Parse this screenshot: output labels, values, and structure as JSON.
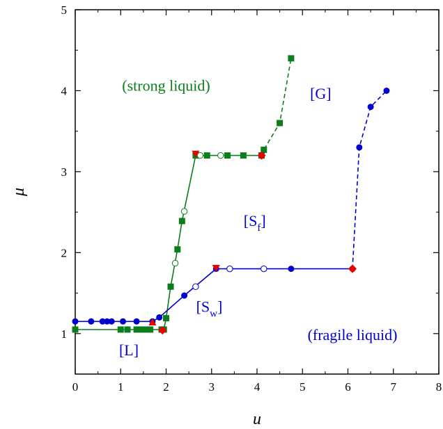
{
  "chart_data": {
    "type": "scatter",
    "title": "",
    "xlabel": "u",
    "ylabel": "μ",
    "xlim": [
      0,
      8
    ],
    "ylim": [
      0.5,
      5
    ],
    "x_ticks": [
      "0",
      "1",
      "2",
      "3",
      "4",
      "5",
      "6",
      "7",
      "8"
    ],
    "y_ticks": [
      "1",
      "2",
      "3",
      "4",
      "5"
    ],
    "grid": false,
    "legend": "none",
    "colors": {
      "green": "#0b7d1a",
      "blue": "#0000cc",
      "red": "#ee0000"
    },
    "series": [
      {
        "id": "green-solid",
        "style": "solid-line-square",
        "color": "#0b7d1a",
        "points": [
          [
            0.0,
            1.05
          ],
          [
            1.0,
            1.05
          ],
          [
            1.15,
            1.05
          ],
          [
            1.35,
            1.05
          ],
          [
            1.45,
            1.05
          ],
          [
            1.55,
            1.05
          ],
          [
            1.65,
            1.05
          ],
          [
            1.9,
            1.05
          ],
          [
            1.95,
            1.05
          ],
          [
            2.0,
            1.19
          ],
          [
            2.1,
            1.58
          ],
          [
            2.25,
            2.04
          ],
          [
            2.35,
            2.39
          ],
          [
            2.65,
            3.2
          ],
          [
            2.9,
            3.2
          ],
          [
            3.35,
            3.2
          ],
          [
            3.7,
            3.2
          ],
          [
            4.1,
            3.2
          ]
        ]
      },
      {
        "id": "green-dashed",
        "style": "dashed-line-square",
        "color": "#0b7d1a",
        "points": [
          [
            4.1,
            3.2
          ],
          [
            4.15,
            3.27
          ],
          [
            4.5,
            3.6
          ],
          [
            4.75,
            4.4
          ]
        ]
      },
      {
        "id": "green-open-circles",
        "style": "open-circle",
        "color": "#0b7d1a",
        "points": [
          [
            2.2,
            1.87
          ],
          [
            2.4,
            2.51
          ],
          [
            2.75,
            3.2
          ],
          [
            3.2,
            3.2
          ]
        ]
      },
      {
        "id": "blue-solid",
        "style": "solid-line-circle",
        "color": "#0000cc",
        "points": [
          [
            0.0,
            1.15
          ],
          [
            0.35,
            1.15
          ],
          [
            0.6,
            1.15
          ],
          [
            0.7,
            1.15
          ],
          [
            0.8,
            1.15
          ],
          [
            1.05,
            1.15
          ],
          [
            1.35,
            1.15
          ],
          [
            1.7,
            1.15
          ],
          [
            1.85,
            1.2
          ],
          [
            2.4,
            1.47
          ],
          [
            3.1,
            1.8
          ],
          [
            3.4,
            1.8
          ],
          [
            4.75,
            1.8
          ],
          [
            6.1,
            1.8
          ]
        ]
      },
      {
        "id": "blue-dashed",
        "style": "dashed-line-circle",
        "color": "#0000cc",
        "points": [
          [
            6.1,
            1.8
          ],
          [
            6.25,
            3.3
          ],
          [
            6.5,
            3.8
          ],
          [
            6.85,
            4.0
          ]
        ]
      },
      {
        "id": "blue-open-circles",
        "style": "open-circle",
        "color": "#0000cc",
        "points": [
          [
            2.65,
            1.58
          ],
          [
            3.4,
            1.8
          ],
          [
            4.15,
            1.8
          ]
        ]
      },
      {
        "id": "red-triangles-up",
        "style": "triangle-up",
        "color": "#ee0000",
        "points": [
          [
            1.7,
            1.14
          ]
        ]
      },
      {
        "id": "red-triangles-down",
        "style": "triangle-down",
        "color": "#ee0000",
        "points": [
          [
            2.65,
            3.22
          ],
          [
            3.1,
            1.81
          ]
        ]
      },
      {
        "id": "red-diamonds",
        "style": "diamond",
        "color": "#ee0000",
        "points": [
          [
            1.92,
            1.04
          ],
          [
            4.1,
            3.2
          ],
          [
            6.1,
            1.8
          ]
        ]
      }
    ],
    "annotations": [
      {
        "id": "strong-liquid",
        "text": "(strong liquid)",
        "x": 2.0,
        "y": 4.0,
        "color": "#0b7d1a"
      },
      {
        "id": "glass-region",
        "text": "[G]",
        "x": 5.4,
        "y": 3.9,
        "color": "#0000cc"
      },
      {
        "id": "sf-region",
        "main": "[S",
        "sub": "f",
        "close": "]",
        "x": 3.95,
        "y": 2.33,
        "color": "#0000cc"
      },
      {
        "id": "sw-region",
        "main": "[S",
        "sub": "w",
        "close": "]",
        "x": 2.95,
        "y": 1.27,
        "color": "#0000cc"
      },
      {
        "id": "fragile-liquid",
        "text": "(fragile liquid)",
        "x": 6.1,
        "y": 0.92,
        "color": "#0000cc"
      },
      {
        "id": "liquid-region",
        "text": "[L]",
        "x": 1.18,
        "y": 0.73,
        "color": "#0000cc"
      }
    ]
  }
}
